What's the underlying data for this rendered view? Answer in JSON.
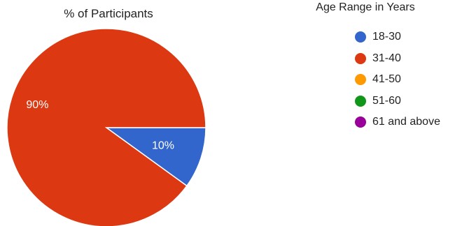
{
  "chart_data": {
    "type": "pie",
    "title": "% of Participants",
    "legend_title": "Age Range in Years",
    "legend_position": "right",
    "slices": [
      {
        "label": "18-30",
        "value": 10,
        "data_label": "10%",
        "color": "#3366cc"
      },
      {
        "label": "31-40",
        "value": 90,
        "data_label": "90%",
        "color": "#dc3912"
      },
      {
        "label": "41-50",
        "value": 0,
        "data_label": "",
        "color": "#ff9900"
      },
      {
        "label": "51-60",
        "value": 0,
        "data_label": "",
        "color": "#109618"
      },
      {
        "label": "61 and above",
        "value": 0,
        "data_label": "",
        "color": "#990099"
      }
    ]
  }
}
